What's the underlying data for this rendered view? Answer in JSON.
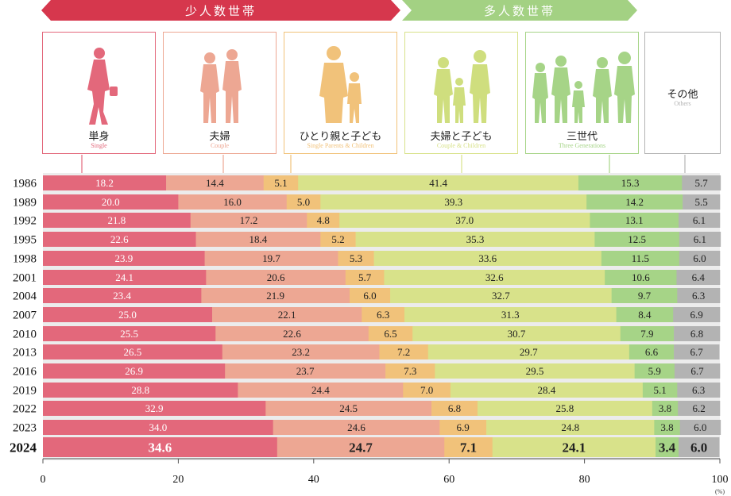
{
  "header": {
    "small_households": "少人数世帯",
    "large_households": "多人数世帯"
  },
  "cards": [
    {
      "jp": "単身",
      "en": "Single",
      "color": "#e3687b",
      "icon": "single-person-silhouette-icon"
    },
    {
      "jp": "夫婦",
      "en": "Couple",
      "color": "#eda793",
      "icon": "couple-silhouette-icon"
    },
    {
      "jp": "ひとり親と子ども",
      "en": "Single Parents & Children",
      "color": "#f1c27a",
      "icon": "single-parent-child-silhouette-icon"
    },
    {
      "jp": "夫婦と子ども",
      "en": "Couple & Children",
      "color": "#d8e28a",
      "icon": "family-silhouette-icon"
    },
    {
      "jp": "三世代",
      "en": "Three Generations",
      "color": "#a6d487",
      "icon": "three-generations-silhouette-icon"
    },
    {
      "jp": "その他",
      "en": "Others",
      "color": "#b3b3b3",
      "icon": ""
    }
  ],
  "colors": {
    "small_banner": "#d6374d",
    "large_banner": "#a3d183",
    "segments": [
      "#e3687b",
      "#eda793",
      "#f1c27a",
      "#d8e28a",
      "#a6d487",
      "#b3b3b3"
    ],
    "card_borders": [
      "#e3687b",
      "#eda793",
      "#f1c27a",
      "#d8e28a",
      "#a6d487",
      "#b3b3b3"
    ],
    "figures": [
      "#e3687b",
      "#eda793",
      "#f1c27a",
      "#cfde7e",
      "#a6d487",
      "#b3b3b3"
    ]
  },
  "chart_data": {
    "type": "bar",
    "orientation": "horizontal",
    "stacked": true,
    "categories": [
      "1986",
      "1989",
      "1992",
      "1995",
      "1998",
      "2001",
      "2004",
      "2007",
      "2010",
      "2013",
      "2016",
      "2019",
      "2022",
      "2023",
      "2024"
    ],
    "series": [
      {
        "name": "単身",
        "values": [
          18.2,
          20.0,
          21.8,
          22.6,
          23.9,
          24.1,
          23.4,
          25.0,
          25.5,
          26.5,
          26.9,
          28.8,
          32.9,
          34.0,
          34.6
        ]
      },
      {
        "name": "夫婦",
        "values": [
          14.4,
          16.0,
          17.2,
          18.4,
          19.7,
          20.6,
          21.9,
          22.1,
          22.6,
          23.2,
          23.7,
          24.4,
          24.5,
          24.6,
          24.7
        ]
      },
      {
        "name": "ひとり親と子ども",
        "values": [
          5.1,
          5.0,
          4.8,
          5.2,
          5.3,
          5.7,
          6.0,
          6.3,
          6.5,
          7.2,
          7.3,
          7.0,
          6.8,
          6.9,
          7.1
        ]
      },
      {
        "name": "夫婦と子ども",
        "values": [
          41.4,
          39.3,
          37.0,
          35.3,
          33.6,
          32.6,
          32.7,
          31.3,
          30.7,
          29.7,
          29.5,
          28.4,
          25.8,
          24.8,
          24.1
        ]
      },
      {
        "name": "三世代",
        "values": [
          15.3,
          14.2,
          13.1,
          12.5,
          11.5,
          10.6,
          9.7,
          8.4,
          7.9,
          6.6,
          5.9,
          5.1,
          3.8,
          3.8,
          3.4
        ]
      },
      {
        "name": "その他",
        "values": [
          5.7,
          5.5,
          6.1,
          6.1,
          6.0,
          6.4,
          6.3,
          6.9,
          6.8,
          6.7,
          6.7,
          6.3,
          6.2,
          6.0,
          6.0
        ]
      }
    ],
    "xlim": [
      0,
      100
    ],
    "x_ticks": [
      "0",
      "20",
      "40",
      "60",
      "80",
      "100"
    ],
    "x_unit": "(%)",
    "highlight_category": "2024"
  }
}
